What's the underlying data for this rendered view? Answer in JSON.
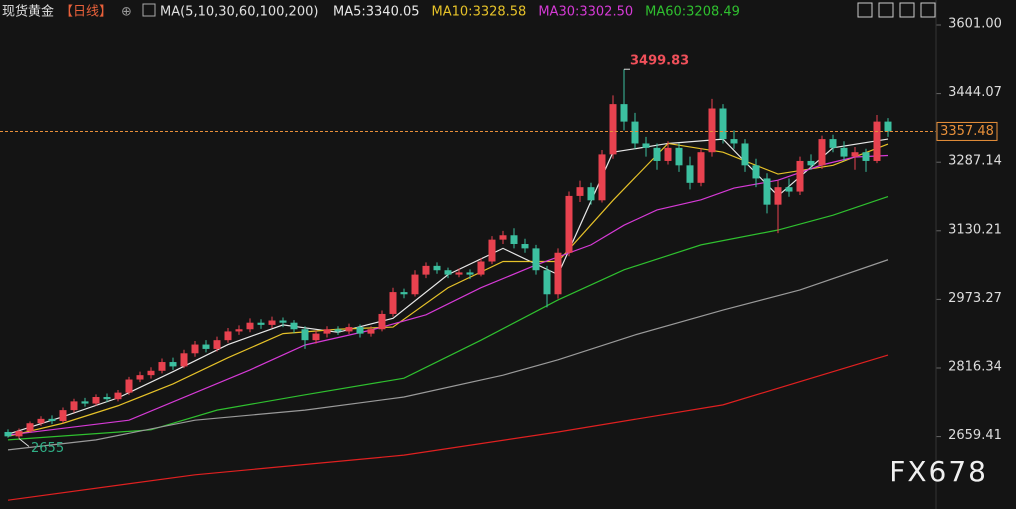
{
  "header": {
    "symbol": "现货黄金",
    "period": "【日线】",
    "ma_title": "MA(5,10,30,60,100,200)"
  },
  "watermark": "FX678",
  "chart_data": {
    "type": "candlestick",
    "ylim": [
      2493.8,
      3658.2
    ],
    "yticks": [
      {
        "value": 3601,
        "label": "3601.00"
      },
      3444.07,
      3287.14,
      3130.21,
      2973.27,
      2816.34,
      2659.41
    ],
    "up_color": "#e8424f",
    "down_color": "#3cc0a0",
    "candles": [
      [
        2670,
        2676,
        2656.73,
        2660
      ],
      [
        2660,
        2678,
        2655,
        2672
      ],
      [
        2672,
        2694,
        2668,
        2690
      ],
      [
        2690,
        2706,
        2684,
        2700
      ],
      [
        2700,
        2708,
        2688,
        2695
      ],
      [
        2695,
        2726,
        2690,
        2720
      ],
      [
        2720,
        2746,
        2714,
        2740
      ],
      [
        2740,
        2748,
        2728,
        2735
      ],
      [
        2735,
        2756,
        2730,
        2750
      ],
      [
        2750,
        2758,
        2738,
        2745
      ],
      [
        2745,
        2766,
        2740,
        2760
      ],
      [
        2760,
        2796,
        2755,
        2790
      ],
      [
        2790,
        2808,
        2784,
        2800
      ],
      [
        2800,
        2818,
        2792,
        2810
      ],
      [
        2810,
        2838,
        2804,
        2830
      ],
      [
        2830,
        2840,
        2812,
        2820
      ],
      [
        2820,
        2858,
        2816,
        2850
      ],
      [
        2850,
        2878,
        2842,
        2870
      ],
      [
        2870,
        2880,
        2852,
        2860
      ],
      [
        2860,
        2888,
        2854,
        2880
      ],
      [
        2880,
        2908,
        2874,
        2900
      ],
      [
        2900,
        2914,
        2892,
        2905
      ],
      [
        2905,
        2930,
        2898,
        2920
      ],
      [
        2920,
        2928,
        2906,
        2915
      ],
      [
        2915,
        2934,
        2908,
        2925
      ],
      [
        2925,
        2932,
        2910,
        2920
      ],
      [
        2920,
        2926,
        2896,
        2905
      ],
      [
        2905,
        2912,
        2860,
        2880
      ],
      [
        2880,
        2902,
        2872,
        2895
      ],
      [
        2895,
        2912,
        2886,
        2905
      ],
      [
        2905,
        2912,
        2892,
        2900
      ],
      [
        2900,
        2918,
        2894,
        2910
      ],
      [
        2910,
        2916,
        2886,
        2895
      ],
      [
        2895,
        2912,
        2888,
        2905
      ],
      [
        2905,
        2948,
        2900,
        2940
      ],
      [
        2940,
        3000,
        2934,
        2990
      ],
      [
        2990,
        2998,
        2976,
        2985
      ],
      [
        2985,
        3040,
        2980,
        3030
      ],
      [
        3030,
        3058,
        3022,
        3050
      ],
      [
        3050,
        3058,
        3032,
        3040
      ],
      [
        3040,
        3046,
        3022,
        3030
      ],
      [
        3030,
        3044,
        3024,
        3035
      ],
      [
        3035,
        3042,
        3020,
        3030
      ],
      [
        3030,
        3068,
        3026,
        3060
      ],
      [
        3060,
        3118,
        3054,
        3110
      ],
      [
        3110,
        3130,
        3100,
        3120
      ],
      [
        3120,
        3136,
        3090,
        3100
      ],
      [
        3100,
        3112,
        3080,
        3090
      ],
      [
        3090,
        3098,
        3030,
        3040
      ],
      [
        3040,
        3050,
        2955,
        2985
      ],
      [
        2985,
        3090,
        2975,
        3080
      ],
      [
        3080,
        3220,
        3072,
        3210
      ],
      [
        3210,
        3245,
        3196,
        3230
      ],
      [
        3230,
        3240,
        3190,
        3200
      ],
      [
        3200,
        3315,
        3195,
        3305
      ],
      [
        3305,
        3440,
        3295,
        3420
      ],
      [
        3420,
        3499.83,
        3360,
        3380
      ],
      [
        3380,
        3400,
        3318,
        3330
      ],
      [
        3330,
        3345,
        3300,
        3320
      ],
      [
        3320,
        3330,
        3270,
        3290
      ],
      [
        3290,
        3335,
        3282,
        3320
      ],
      [
        3320,
        3330,
        3265,
        3280
      ],
      [
        3280,
        3300,
        3225,
        3240
      ],
      [
        3240,
        3320,
        3232,
        3310
      ],
      [
        3310,
        3432,
        3300,
        3410
      ],
      [
        3410,
        3420,
        3330,
        3340
      ],
      [
        3340,
        3360,
        3318,
        3330
      ],
      [
        3330,
        3340,
        3265,
        3280
      ],
      [
        3280,
        3295,
        3230,
        3250
      ],
      [
        3250,
        3262,
        3170,
        3190
      ],
      [
        3190,
        3245,
        3125,
        3230
      ],
      [
        3230,
        3250,
        3208,
        3220
      ],
      [
        3220,
        3300,
        3212,
        3290
      ],
      [
        3290,
        3305,
        3270,
        3280
      ],
      [
        3280,
        3348,
        3272,
        3340
      ],
      [
        3340,
        3350,
        3310,
        3320
      ],
      [
        3320,
        3335,
        3290,
        3300
      ],
      [
        3300,
        3322,
        3270,
        3310
      ],
      [
        3310,
        3318,
        3265,
        3290
      ],
      [
        3290,
        3395,
        3285,
        3380
      ],
      [
        3380,
        3388,
        3345,
        3357.48
      ]
    ],
    "series": [
      {
        "name": "MA5:3340.05",
        "color": "#e8e8e8",
        "x": [
          0,
          5,
          10,
          15,
          20,
          25,
          30,
          35,
          40,
          45,
          50,
          55,
          60,
          65,
          70,
          75,
          80
        ],
        "values": [
          2665,
          2705,
          2748,
          2808,
          2870,
          2915,
          2898,
          2930,
          3030,
          3090,
          3030,
          3310,
          3330,
          3340,
          3210,
          3320,
          3340.05
        ]
      },
      {
        "name": "MA10:3328.58",
        "color": "#e6c229",
        "x": [
          0,
          5,
          10,
          15,
          20,
          25,
          30,
          35,
          40,
          45,
          50,
          55,
          60,
          65,
          70,
          75,
          80
        ],
        "values": [
          2660,
          2690,
          2730,
          2780,
          2840,
          2895,
          2905,
          2910,
          3000,
          3060,
          3060,
          3200,
          3330,
          3310,
          3260,
          3280,
          3328.58
        ]
      },
      {
        "name": "MA30:3302.50",
        "color": "#d63ad6",
        "x": [
          0,
          11,
          22,
          27,
          33,
          38,
          43,
          48,
          53,
          56,
          59,
          63,
          66,
          70,
          74,
          77,
          80
        ],
        "values": [
          2663,
          2697,
          2812,
          2869,
          2903,
          2938,
          3000,
          3052,
          3098,
          3143,
          3178,
          3201,
          3228,
          3246,
          3281,
          3299,
          3302.5
        ]
      },
      {
        "name": "MA60:3208.49",
        "color": "#2fc02f",
        "x": [
          0,
          13,
          19,
          27,
          36,
          43,
          50,
          56,
          63,
          70,
          75,
          80
        ],
        "values": [
          2652,
          2675,
          2720,
          2755,
          2793,
          2880,
          2972,
          3041,
          3098,
          3132,
          3166,
          3208.49
        ]
      },
      {
        "name": null,
        "color": "#9a9a9a",
        "x": [
          0,
          8,
          17,
          27,
          36,
          45,
          50,
          57,
          65,
          72,
          80
        ],
        "values": [
          2629,
          2652,
          2697,
          2720,
          2750,
          2800,
          2835,
          2892,
          2949,
          2995,
          3064
        ]
      },
      {
        "name": null,
        "color": "#e02020",
        "x": [
          0,
          17,
          36,
          50,
          65,
          80
        ],
        "values": [
          2514,
          2572,
          2617,
          2670,
          2732,
          2846
        ]
      }
    ]
  }
}
